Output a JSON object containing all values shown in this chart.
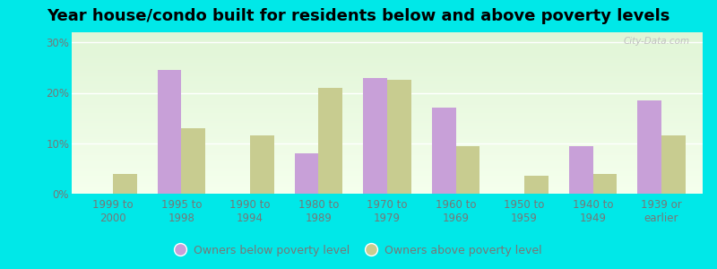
{
  "title": "Year house/condo built for residents below and above poverty levels",
  "categories": [
    "1999 to\n2000",
    "1995 to\n1998",
    "1990 to\n1994",
    "1980 to\n1989",
    "1970 to\n1979",
    "1960 to\n1969",
    "1950 to\n1959",
    "1940 to\n1949",
    "1939 or\nearlier"
  ],
  "below_poverty": [
    0,
    24.5,
    0,
    8.0,
    23.0,
    17.0,
    0,
    9.5,
    18.5
  ],
  "above_poverty": [
    4.0,
    13.0,
    11.5,
    21.0,
    22.5,
    9.5,
    3.5,
    4.0,
    11.5
  ],
  "below_color": "#c8a0d8",
  "above_color": "#c8cc90",
  "background_outer": "#00e8e8",
  "ylim": [
    0,
    32
  ],
  "yticks": [
    0,
    10,
    20,
    30
  ],
  "ytick_labels": [
    "0%",
    "10%",
    "20%",
    "30%"
  ],
  "legend_below": "Owners below poverty level",
  "legend_above": "Owners above poverty level",
  "bar_width": 0.35,
  "title_fontsize": 13,
  "tick_fontsize": 8.5,
  "legend_fontsize": 9,
  "tick_color": "#777777",
  "watermark": "City-Data.com"
}
